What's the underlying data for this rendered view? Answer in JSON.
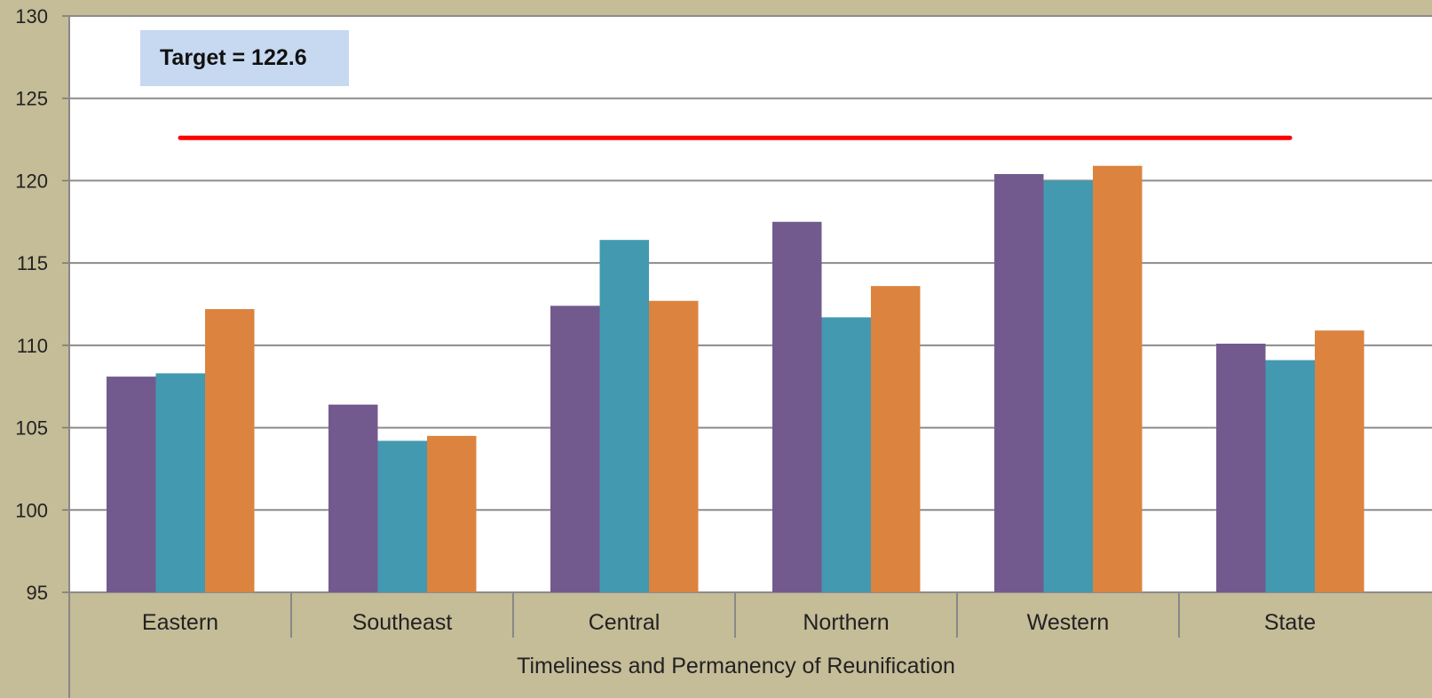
{
  "chart_data": {
    "type": "bar",
    "xlabel": "Timeliness and Permanency of Reunification",
    "ylabel": "",
    "ylim": [
      95,
      130
    ],
    "yticks": [
      95,
      100,
      105,
      110,
      115,
      120,
      125,
      130
    ],
    "grid": true,
    "categories": [
      "Eastern",
      "Southeast",
      "Central",
      "Northern",
      "Western",
      "State"
    ],
    "series": [
      {
        "color": "#725a8e",
        "values": [
          108.1,
          106.4,
          112.4,
          117.5,
          120.4,
          110.1
        ]
      },
      {
        "color": "#4399b0",
        "values": [
          108.3,
          104.2,
          116.4,
          111.7,
          120.0,
          109.1
        ]
      },
      {
        "color": "#dc833f",
        "values": [
          112.2,
          104.5,
          112.7,
          113.6,
          120.9,
          110.9
        ]
      }
    ],
    "target": {
      "value": 122.6,
      "label": "Target = 122.6",
      "color": "#ff0000"
    }
  }
}
